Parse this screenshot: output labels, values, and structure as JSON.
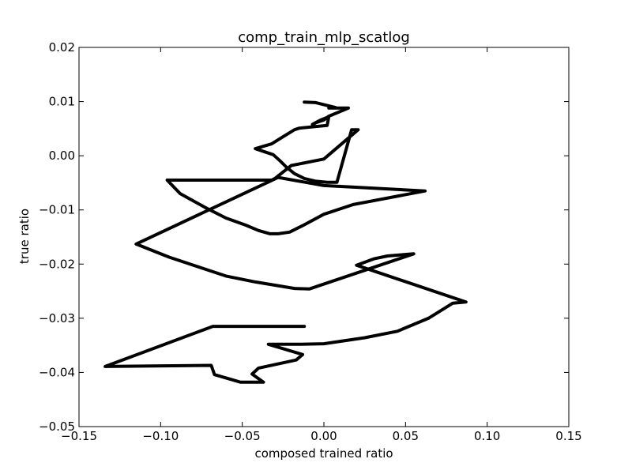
{
  "chart_data": {
    "type": "line",
    "title": "comp_train_mlp_scatlog",
    "xlabel": "composed trained ratio",
    "ylabel": "true ratio",
    "xlim": [
      -0.15,
      0.15
    ],
    "ylim": [
      -0.05,
      0.02
    ],
    "grid": false,
    "legend": "none",
    "xticks": [
      -0.15,
      -0.1,
      -0.05,
      0.0,
      0.05,
      0.1,
      0.15
    ],
    "xtick_labels": [
      "−0.15",
      "−0.10",
      "−0.05",
      "0.00",
      "0.05",
      "0.10",
      "0.15"
    ],
    "yticks": [
      0.02,
      0.01,
      0.0,
      -0.01,
      -0.02,
      -0.03,
      -0.04,
      -0.05
    ],
    "ytick_labels": [
      "0.02",
      "0.01",
      "0.00",
      "−0.01",
      "−0.02",
      "−0.03",
      "−0.04",
      "−0.05"
    ],
    "series": [
      {
        "color": "#000000",
        "x": [
          -0.012,
          -0.005,
          0.007,
          0.003,
          0.015,
          0.003,
          0.0,
          -0.005,
          -0.007,
          -0.007,
          -0.002,
          0.003,
          0.002,
          -0.015,
          -0.018,
          -0.025,
          -0.032,
          -0.042,
          -0.031,
          -0.027,
          -0.023,
          -0.018,
          -0.012,
          -0.005,
          0.002,
          0.008,
          0.017,
          0.021,
          0.0,
          -0.02,
          -0.03,
          -0.032,
          -0.096,
          -0.088,
          -0.073,
          -0.06,
          -0.048,
          -0.04,
          -0.033,
          -0.028,
          -0.021,
          -0.013,
          0.0,
          0.018,
          0.062,
          0.0,
          -0.028,
          -0.115,
          -0.095,
          -0.075,
          -0.06,
          -0.042,
          -0.018,
          -0.009,
          0.055,
          0.047,
          0.039,
          0.031,
          0.02,
          0.087,
          0.079,
          0.064,
          0.045,
          0.025,
          0.0,
          -0.014,
          -0.034,
          -0.013,
          -0.017,
          -0.04,
          -0.044,
          -0.037,
          -0.051,
          -0.067,
          -0.069,
          -0.134,
          -0.068,
          -0.012
        ],
        "y": [
          0.0099,
          0.0098,
          0.0089,
          0.0088,
          0.0088,
          0.0073,
          0.0066,
          0.0061,
          0.0057,
          0.0058,
          0.0066,
          0.0072,
          0.0056,
          0.0051,
          0.0048,
          0.0035,
          0.0022,
          0.0013,
          0.0002,
          -0.0009,
          -0.0021,
          -0.0033,
          -0.0042,
          -0.0047,
          -0.0049,
          -0.0049,
          0.0048,
          0.0048,
          -0.0006,
          -0.0018,
          -0.0042,
          -0.0045,
          -0.0045,
          -0.007,
          -0.0095,
          -0.0115,
          -0.0128,
          -0.0138,
          -0.0144,
          -0.0144,
          -0.0141,
          -0.0129,
          -0.0108,
          -0.009,
          -0.0065,
          -0.0055,
          -0.004,
          -0.0163,
          -0.0187,
          -0.0207,
          -0.0222,
          -0.0233,
          -0.0245,
          -0.0246,
          -0.0181,
          -0.0183,
          -0.0185,
          -0.019,
          -0.0202,
          -0.027,
          -0.0272,
          -0.03,
          -0.0324,
          -0.0336,
          -0.0347,
          -0.0348,
          -0.0348,
          -0.0367,
          -0.0377,
          -0.0392,
          -0.0403,
          -0.0418,
          -0.0418,
          -0.0404,
          -0.0387,
          -0.0389,
          -0.0315,
          -0.0315
        ]
      }
    ]
  }
}
